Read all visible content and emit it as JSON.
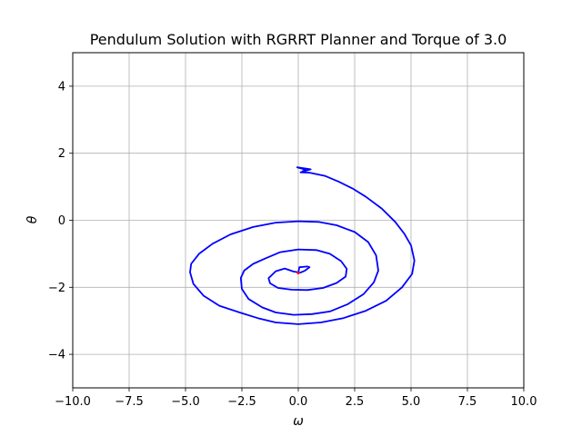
{
  "chart_data": {
    "type": "line",
    "title": "Pendulum Solution with RGRRT Planner and Torque of 3.0",
    "xlabel": "ω",
    "ylabel": "θ",
    "xlim": [
      -10,
      10
    ],
    "ylim": [
      -5,
      5
    ],
    "xticks": [
      -10,
      -7.5,
      -5,
      -2.5,
      0,
      2.5,
      5,
      7.5,
      10
    ],
    "xtick_labels": [
      "−10.0",
      "−7.5",
      "−5.0",
      "−2.5",
      "0.0",
      "2.5",
      "5.0",
      "7.5",
      "10.0"
    ],
    "yticks": [
      -4,
      -2,
      0,
      2,
      4
    ],
    "ytick_labels": [
      "−4",
      "−2",
      "0",
      "2",
      "4"
    ],
    "grid": true,
    "series": [
      {
        "color": "#0000ff",
        "points": [
          [
            0.0,
            -1.57
          ],
          [
            0.05,
            -1.4
          ],
          [
            0.4,
            -1.38
          ],
          [
            0.5,
            -1.4
          ],
          [
            0.3,
            -1.5
          ],
          [
            0.1,
            -1.56
          ],
          [
            -0.2,
            -1.53
          ],
          [
            -0.6,
            -1.44
          ],
          [
            -1.0,
            -1.52
          ],
          [
            -1.32,
            -1.73
          ],
          [
            -1.25,
            -1.88
          ],
          [
            -0.9,
            -2.02
          ],
          [
            -0.3,
            -2.07
          ],
          [
            0.4,
            -2.08
          ],
          [
            1.1,
            -2.02
          ],
          [
            1.7,
            -1.87
          ],
          [
            2.1,
            -1.68
          ],
          [
            2.15,
            -1.45
          ],
          [
            1.9,
            -1.22
          ],
          [
            1.4,
            -1.0
          ],
          [
            0.8,
            -0.89
          ],
          [
            0.0,
            -0.87
          ],
          [
            -0.8,
            -0.95
          ],
          [
            -1.5,
            -1.15
          ],
          [
            -2.0,
            -1.3
          ],
          [
            -2.4,
            -1.5
          ],
          [
            -2.55,
            -1.72
          ],
          [
            -2.5,
            -2.05
          ],
          [
            -2.2,
            -2.35
          ],
          [
            -1.6,
            -2.6
          ],
          [
            -1.0,
            -2.75
          ],
          [
            -0.2,
            -2.82
          ],
          [
            0.6,
            -2.8
          ],
          [
            1.4,
            -2.72
          ],
          [
            2.2,
            -2.5
          ],
          [
            2.9,
            -2.2
          ],
          [
            3.35,
            -1.85
          ],
          [
            3.55,
            -1.5
          ],
          [
            3.45,
            -1.05
          ],
          [
            3.1,
            -0.65
          ],
          [
            2.5,
            -0.35
          ],
          [
            1.7,
            -0.15
          ],
          [
            0.9,
            -0.05
          ],
          [
            0.0,
            -0.03
          ],
          [
            -1.0,
            -0.07
          ],
          [
            -2.0,
            -0.2
          ],
          [
            -3.0,
            -0.42
          ],
          [
            -3.8,
            -0.7
          ],
          [
            -4.4,
            -1.0
          ],
          [
            -4.75,
            -1.3
          ],
          [
            -4.8,
            -1.55
          ],
          [
            -4.65,
            -1.9
          ],
          [
            -4.2,
            -2.25
          ],
          [
            -3.5,
            -2.55
          ],
          [
            -2.6,
            -2.75
          ],
          [
            -1.8,
            -2.92
          ],
          [
            -1.0,
            -3.05
          ],
          [
            0.0,
            -3.1
          ],
          [
            1.0,
            -3.05
          ],
          [
            2.0,
            -2.92
          ],
          [
            3.0,
            -2.7
          ],
          [
            3.9,
            -2.4
          ],
          [
            4.6,
            -2.0
          ],
          [
            5.05,
            -1.6
          ],
          [
            5.15,
            -1.2
          ],
          [
            5.0,
            -0.75
          ],
          [
            4.7,
            -0.4
          ],
          [
            4.3,
            -0.05
          ],
          [
            3.7,
            0.35
          ],
          [
            3.0,
            0.7
          ],
          [
            2.4,
            0.95
          ],
          [
            1.8,
            1.15
          ],
          [
            1.2,
            1.32
          ],
          [
            0.5,
            1.42
          ],
          [
            0.1,
            1.43
          ],
          [
            0.55,
            1.52
          ],
          [
            0.15,
            1.56
          ],
          [
            -0.05,
            1.58
          ],
          [
            0.4,
            1.5
          ],
          [
            0.2,
            1.47
          ]
        ]
      }
    ],
    "markers": [
      {
        "x": 0.0,
        "y": -1.57,
        "color": "#ff0000"
      }
    ]
  }
}
